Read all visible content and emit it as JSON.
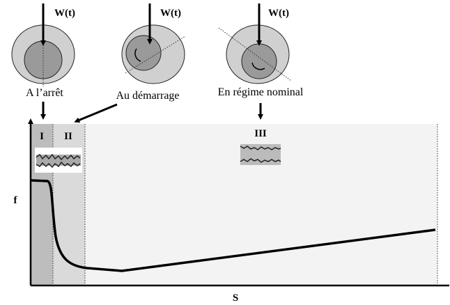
{
  "bearings": [
    {
      "load": "W(t)",
      "label": "A l’arrêt"
    },
    {
      "load": "W(t)",
      "label": "Au démarrage"
    },
    {
      "load": "W(t)",
      "label": "En régime nominal"
    }
  ],
  "regions": [
    {
      "label": "I"
    },
    {
      "label": "II"
    },
    {
      "label": "III"
    }
  ],
  "axes": {
    "y": "f",
    "x": "S"
  }
}
